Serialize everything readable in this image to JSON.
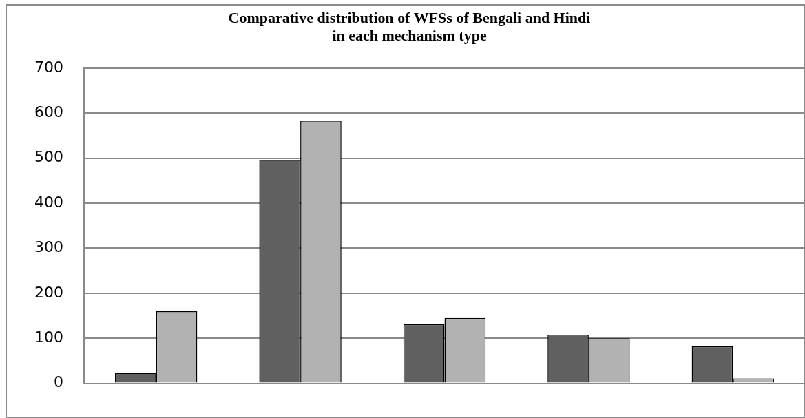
{
  "chart_data": {
    "type": "bar",
    "title": "Comparative distribution of WFSs of Bengali and Hindi\nin each mechanism type",
    "categories": [
      null,
      null,
      null,
      null,
      null
    ],
    "series": [
      {
        "color": "#606060",
        "values": [
          23,
          496,
          131,
          108,
          82
        ]
      },
      {
        "color": "#b2b2b2",
        "values": [
          160,
          583,
          145,
          100,
          11
        ]
      }
    ],
    "ylim": [
      0,
      700
    ],
    "yticks": [
      0,
      100,
      200,
      300,
      400,
      500,
      600,
      700
    ],
    "grid": "y",
    "legend": false
  }
}
